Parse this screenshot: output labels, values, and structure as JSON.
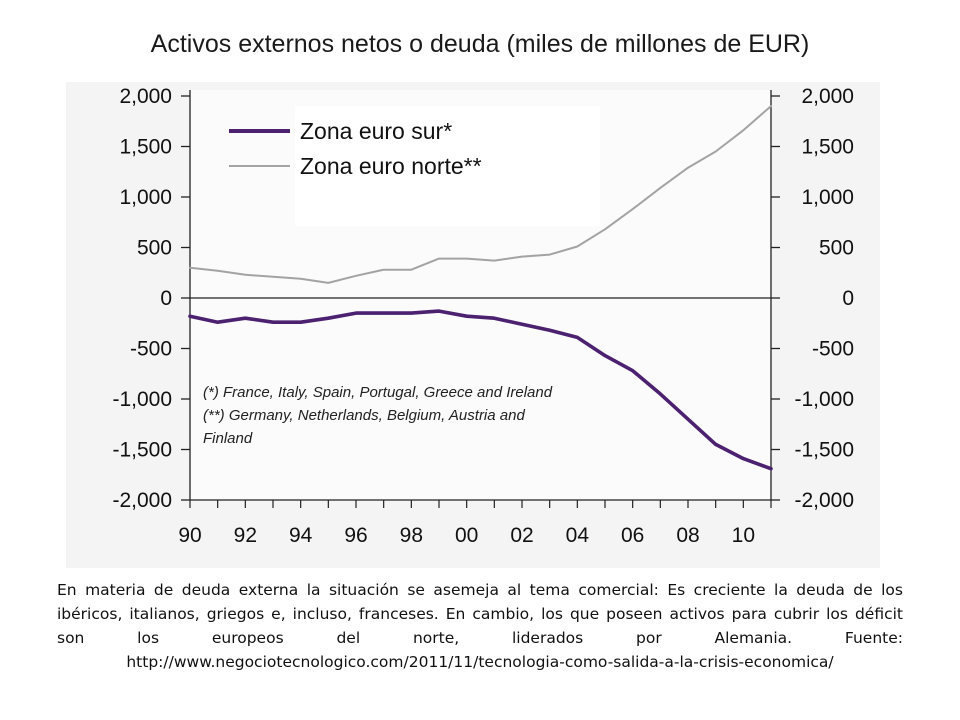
{
  "title": "Activos externos netos o deuda (miles de millones de EUR)",
  "caption": "En materia de deuda externa la situación se asemeja al tema comercial: Es creciente la deuda de los ibéricos, italianos, griegos e, incluso, franceses. En cambio, los que poseen activos para cubrir los déficit son los europeos del norte, liderados por Alemania. Fuente: http://www.negociotecnologico.com/2011/11/tecnologia-como-salida-a-la-crisis-economica/",
  "chart_data": {
    "type": "line",
    "title": "Activos externos netos o deuda (miles de millones de EUR)",
    "xlabel": "",
    "ylabel": "",
    "xlim": [
      1990,
      2011
    ],
    "ylim": [
      -2000,
      2000
    ],
    "x_tick_labels": [
      "90",
      "92",
      "94",
      "96",
      "98",
      "00",
      "02",
      "04",
      "06",
      "08",
      "10"
    ],
    "x_tick_values": [
      1990,
      1992,
      1994,
      1996,
      1998,
      2000,
      2002,
      2004,
      2006,
      2008,
      2010
    ],
    "y_tick_labels": [
      "2,000",
      "1,500",
      "1,000",
      "500",
      "0",
      "-500",
      "-1,000",
      "-1,500",
      "-2,000"
    ],
    "y_tick_values": [
      2000,
      1500,
      1000,
      500,
      0,
      -500,
      -1000,
      -1500,
      -2000
    ],
    "legend_position": "top-left",
    "grid": false,
    "series": [
      {
        "name": "Zona euro sur*",
        "color": "#4b2170",
        "x": [
          1990,
          1991,
          1992,
          1993,
          1994,
          1995,
          1996,
          1997,
          1998,
          1999,
          2000,
          2001,
          2002,
          2003,
          2004,
          2005,
          2006,
          2007,
          2008,
          2009,
          2010,
          2011
        ],
        "values": [
          -180,
          -240,
          -200,
          -240,
          -240,
          -200,
          -150,
          -150,
          -150,
          -130,
          -180,
          -200,
          -260,
          -320,
          -390,
          -570,
          -720,
          -950,
          -1200,
          -1450,
          -1590,
          -1690
        ]
      },
      {
        "name": "Zona euro norte**",
        "color": "#a3a3a3",
        "x": [
          1990,
          1991,
          1992,
          1993,
          1994,
          1995,
          1996,
          1997,
          1998,
          1999,
          2000,
          2001,
          2002,
          2003,
          2004,
          2005,
          2006,
          2007,
          2008,
          2009,
          2010,
          2011
        ],
        "values": [
          300,
          270,
          230,
          210,
          190,
          150,
          220,
          280,
          280,
          390,
          390,
          370,
          410,
          430,
          510,
          680,
          880,
          1090,
          1290,
          1450,
          1660,
          1900
        ]
      }
    ],
    "notes": [
      "(*) France, Italy, Spain, Portugal, Greece and Ireland",
      "(**) Germany, Netherlands, Belgium, Austria and",
      "Finland"
    ]
  }
}
